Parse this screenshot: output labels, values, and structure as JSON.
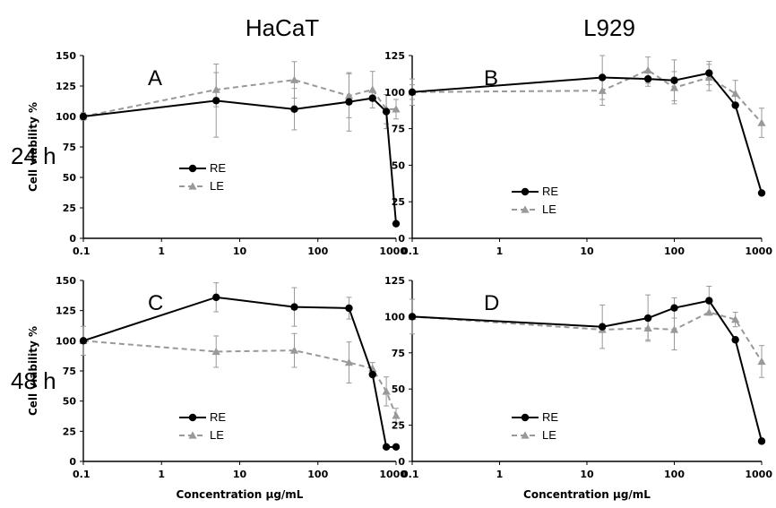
{
  "figure": {
    "column_titles": [
      "HaCaT",
      "L929"
    ],
    "row_titles": [
      "24 h",
      "48 h"
    ]
  },
  "colors": {
    "RE": "#000000",
    "LE": "#999999",
    "error_bar": "#999999"
  },
  "chart_data": [
    {
      "type": "line",
      "panel": "A",
      "xscale": "log",
      "xlim": [
        0.1,
        1000
      ],
      "xticks": [
        "0.1",
        "1",
        "10",
        "100",
        "1000"
      ],
      "ylim": [
        0,
        150
      ],
      "yticks": [
        "0",
        "25",
        "50",
        "75",
        "100",
        "125",
        "150"
      ],
      "ylabel": "Cell viability %",
      "xlabel": "",
      "legend_position": "bottom-left",
      "series": [
        {
          "name": "RE",
          "marker": "circle",
          "line": "solid",
          "x": [
            0.1,
            5,
            50,
            250,
            500,
            750,
            1000
          ],
          "y": [
            100,
            113,
            106,
            112,
            115,
            104,
            12
          ],
          "err": [
            3,
            30,
            17,
            24,
            0,
            14,
            0
          ]
        },
        {
          "name": "LE",
          "marker": "triangle",
          "line": "dashed",
          "x": [
            0.1,
            5,
            50,
            250,
            500,
            750,
            1000
          ],
          "y": [
            100,
            122,
            130,
            117,
            122,
            106,
            106
          ],
          "err": [
            3,
            14,
            15,
            18,
            15,
            12,
            8
          ]
        }
      ]
    },
    {
      "type": "line",
      "panel": "B",
      "xscale": "log",
      "xlim": [
        0.1,
        1000
      ],
      "xticks": [
        "0.1",
        "1",
        "10",
        "100",
        "1000"
      ],
      "ylim": [
        0,
        125
      ],
      "yticks": [
        "0",
        "25",
        "50",
        "75",
        "100",
        "125"
      ],
      "ylabel": "",
      "xlabel": "",
      "legend_position": "bottom-left",
      "series": [
        {
          "name": "RE",
          "marker": "circle",
          "line": "solid",
          "x": [
            0.1,
            15,
            50,
            100,
            250,
            500,
            1000
          ],
          "y": [
            100,
            110,
            109,
            108,
            113,
            91,
            31
          ],
          "err": [
            5,
            15,
            5,
            14,
            8,
            0,
            0
          ]
        },
        {
          "name": "LE",
          "marker": "triangle",
          "line": "dashed",
          "x": [
            0.1,
            15,
            50,
            100,
            250,
            500,
            1000
          ],
          "y": [
            100,
            101,
            115,
            103,
            110,
            99,
            79
          ],
          "err": [
            9,
            10,
            9,
            11,
            9,
            9,
            10
          ]
        }
      ]
    },
    {
      "type": "line",
      "panel": "C",
      "xscale": "log",
      "xlim": [
        0.1,
        1000
      ],
      "xticks": [
        "0.1",
        "1",
        "10",
        "100",
        "1000"
      ],
      "ylim": [
        0,
        150
      ],
      "yticks": [
        "0",
        "25",
        "50",
        "75",
        "100",
        "125",
        "150"
      ],
      "ylabel": "Cell viability %",
      "xlabel": "Concentration μg/mL",
      "legend_position": "bottom-left",
      "series": [
        {
          "name": "RE",
          "marker": "circle",
          "line": "solid",
          "x": [
            0.1,
            5,
            50,
            250,
            500,
            750,
            1000
          ],
          "y": [
            100,
            136,
            128,
            127,
            72,
            12,
            12
          ],
          "err": [
            12,
            12,
            16,
            9,
            0,
            0,
            0
          ]
        },
        {
          "name": "LE",
          "marker": "triangle",
          "line": "dashed",
          "x": [
            0.1,
            5,
            50,
            250,
            500,
            750,
            1000
          ],
          "y": [
            100,
            91,
            92,
            82,
            77,
            58,
            38
          ],
          "err": [
            0,
            13,
            14,
            17,
            5,
            12,
            6
          ]
        }
      ]
    },
    {
      "type": "line",
      "panel": "D",
      "xscale": "log",
      "xlim": [
        0.1,
        1000
      ],
      "xticks": [
        "0.1",
        "1",
        "10",
        "100",
        "1000"
      ],
      "ylim": [
        0,
        125
      ],
      "yticks": [
        "0",
        "25",
        "50",
        "75",
        "100",
        "125"
      ],
      "ylabel": "",
      "xlabel": "Concentration μg/mL",
      "legend_position": "bottom-left",
      "series": [
        {
          "name": "RE",
          "marker": "circle",
          "line": "solid",
          "x": [
            0.1,
            15,
            50,
            100,
            250,
            500,
            1000
          ],
          "y": [
            100,
            93,
            99,
            106,
            111,
            84,
            14
          ],
          "err": [
            12,
            15,
            16,
            7,
            10,
            0,
            0
          ]
        },
        {
          "name": "LE",
          "marker": "triangle",
          "line": "dashed",
          "x": [
            0.1,
            15,
            50,
            100,
            250,
            500,
            1000
          ],
          "y": [
            100,
            91,
            92,
            91,
            103,
            98,
            69
          ],
          "err": [
            0,
            0,
            8,
            14,
            0,
            5,
            11
          ]
        }
      ]
    }
  ]
}
